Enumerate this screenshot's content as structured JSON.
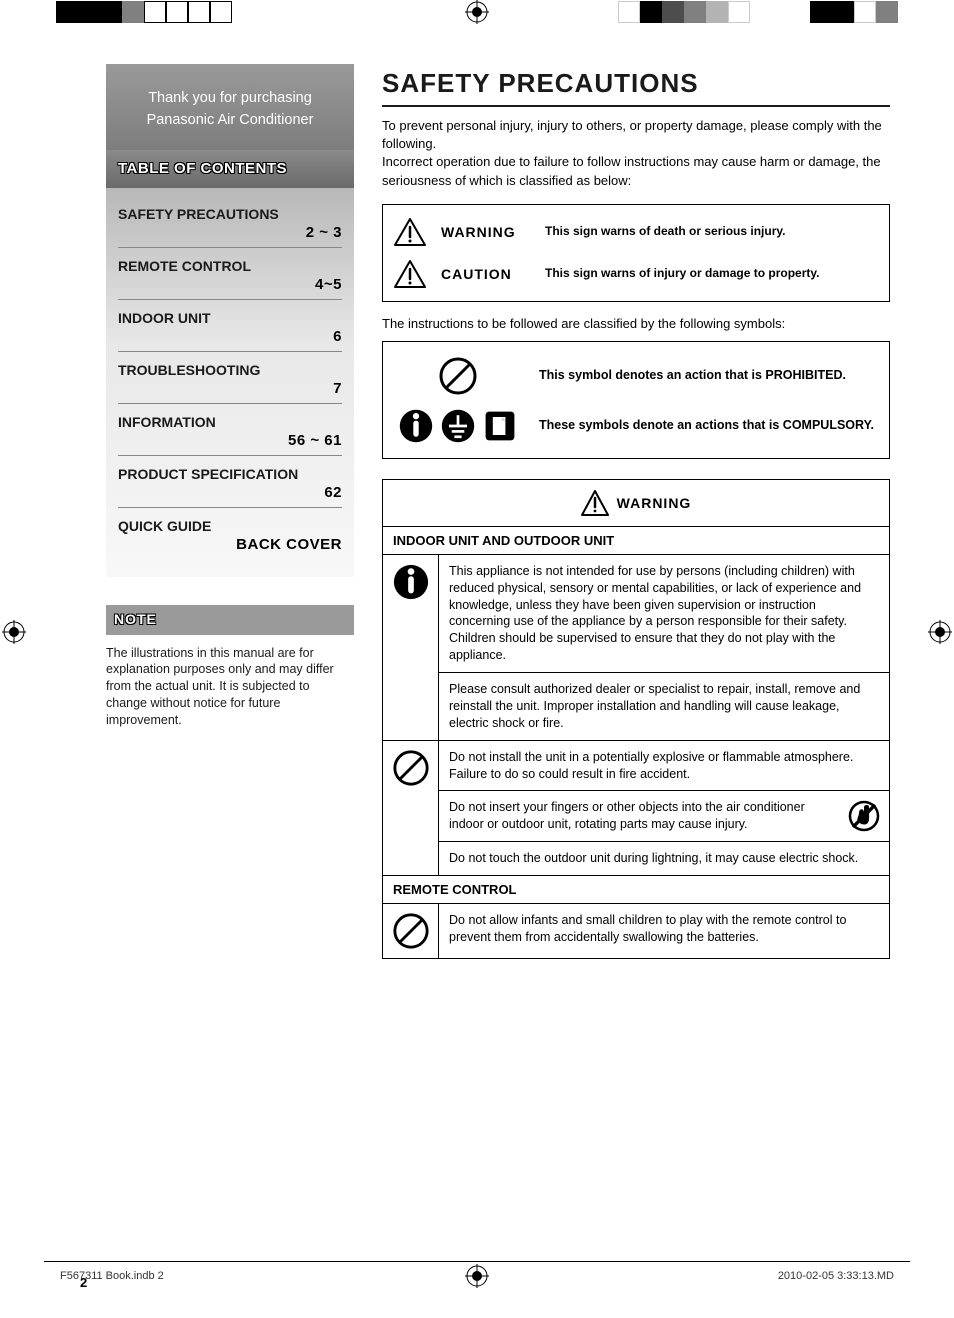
{
  "colors": {
    "crop_blocks_left": [
      "#000000",
      "#000000",
      "#000000",
      "#808080",
      "#ffffff",
      "#ffffff",
      "#ffffff",
      "#ffffff"
    ],
    "crop_blocks_right_a": [
      "#ffffff",
      "#000000",
      "#4d4d4d",
      "#808080",
      "#b3b3b3",
      "#ffffff"
    ],
    "crop_blocks_right_b": [
      "#000000",
      "#000000",
      "#ffffff",
      "#808080"
    ]
  },
  "sidebar": {
    "thank_line1": "Thank you for purchasing",
    "thank_line2": "Panasonic Air Conditioner",
    "toc_title": "TABLE OF CONTENTS",
    "items": [
      {
        "label": "SAFETY PRECAUTIONS",
        "page": "2 ~ 3"
      },
      {
        "label": "REMOTE CONTROL",
        "page": "4~5"
      },
      {
        "label": "INDOOR UNIT",
        "page": "6"
      },
      {
        "label": "TROUBLESHOOTING",
        "page": "7"
      },
      {
        "label": "INFORMATION",
        "page": "56 ~ 61"
      },
      {
        "label": "PRODUCT SPECIFICATION",
        "page": "62"
      },
      {
        "label": "QUICK GUIDE",
        "page": "BACK COVER"
      }
    ],
    "note_title": "NOTE",
    "note_body": "The illustrations in this manual are for explanation purposes only and may differ from the actual unit. It is subjected to change without notice for future improvement."
  },
  "main": {
    "title": "SAFETY PRECAUTIONS",
    "intro": "To prevent personal injury, injury to others, or property damage, please comply with the following.\nIncorrect operation due to failure to follow instructions may cause harm or damage, the seriousness of which is classified as below:",
    "signs": [
      {
        "label": "WARNING",
        "desc": "This sign warns of death or serious injury."
      },
      {
        "label": "CAUTION",
        "desc": "This sign warns of injury or damage to property."
      }
    ],
    "symbol_intro": "The instructions to be followed are classified by the following symbols:",
    "symbols": [
      {
        "desc": "This symbol denotes an action that is PROHIBITED."
      },
      {
        "desc": "These symbols denote an actions that is COMPULSORY."
      }
    ],
    "warning_label": "WARNING",
    "sections": [
      {
        "header": "INDOOR UNIT AND OUTDOOR UNIT",
        "groups": [
          {
            "icon": "compulsory",
            "items": [
              "This appliance is not intended for use by persons (including children) with reduced physical, sensory or mental capabilities, or lack of experience and knowledge, unless they have been given supervision or instruction concerning use of the appliance by a person responsible for their safety. Children should be supervised to ensure that they do not play with the appliance.",
              "Please consult authorized dealer or specialist to repair, install, remove and reinstall the unit. Improper installation and handling will cause leakage, electric shock or fire."
            ],
            "right_icons": [
              null,
              null
            ]
          },
          {
            "icon": "prohibited",
            "items": [
              "Do not install the unit in a potentially explosive or flammable atmosphere. Failure to do so could result in fire accident.",
              "Do not insert your fingers or other objects into the air conditioner indoor or outdoor unit, rotating parts may cause injury.",
              "Do not touch the outdoor unit during lightning, it may cause electric shock."
            ],
            "right_icons": [
              null,
              "no-touch",
              null
            ]
          }
        ]
      },
      {
        "header": "REMOTE CONTROL",
        "groups": [
          {
            "icon": "prohibited",
            "items": [
              "Do not allow infants and small children to play with the remote control to prevent them from accidentally swallowing the batteries."
            ],
            "right_icons": [
              null
            ]
          }
        ]
      }
    ]
  },
  "page_number": "2",
  "footer_left": "F567311 Book.indb   2",
  "footer_right": "2010-02-05   3:33:13.MD"
}
